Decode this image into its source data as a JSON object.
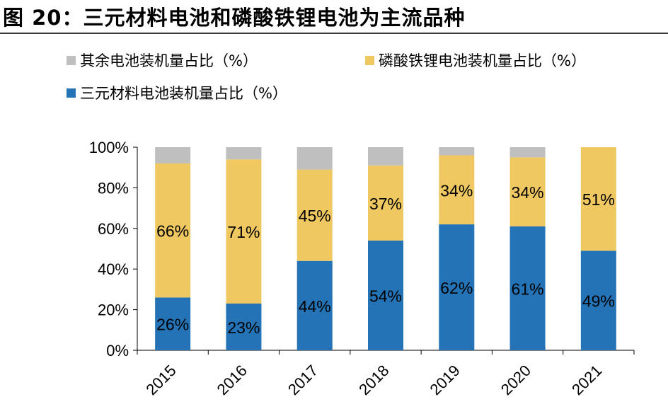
{
  "figure": {
    "title": "图 20：三元材料电池和磷酸铁锂电池为主流品种"
  },
  "colors": {
    "other": "#bfbfbf",
    "lfp": "#f0c862",
    "ncm": "#2473b6"
  },
  "chart_data": {
    "type": "bar",
    "stacked": true,
    "categories": [
      "2015",
      "2016",
      "2017",
      "2018",
      "2019",
      "2020",
      "2021"
    ],
    "series": [
      {
        "name": "三元材料电池装机量占比（%）",
        "key": "ncm",
        "values": [
          26,
          23,
          44,
          54,
          62,
          61,
          49
        ],
        "labels": [
          "26%",
          "23%",
          "44%",
          "54%",
          "62%",
          "61%",
          "49%"
        ]
      },
      {
        "name": "磷酸铁锂电池装机量占比（%）",
        "key": "lfp",
        "values": [
          66,
          71,
          45,
          37,
          34,
          34,
          51
        ],
        "labels": [
          "66%",
          "71%",
          "45%",
          "37%",
          "34%",
          "34%",
          "51%"
        ]
      },
      {
        "name": "其余电池装机量占比（%）",
        "key": "other",
        "values": [
          8,
          6,
          11,
          9,
          4,
          5,
          0
        ]
      }
    ],
    "ylim": [
      0,
      100
    ],
    "yticks": [
      "0%",
      "20%",
      "40%",
      "60%",
      "80%",
      "100%"
    ],
    "legend_position": "top",
    "grid": false
  }
}
